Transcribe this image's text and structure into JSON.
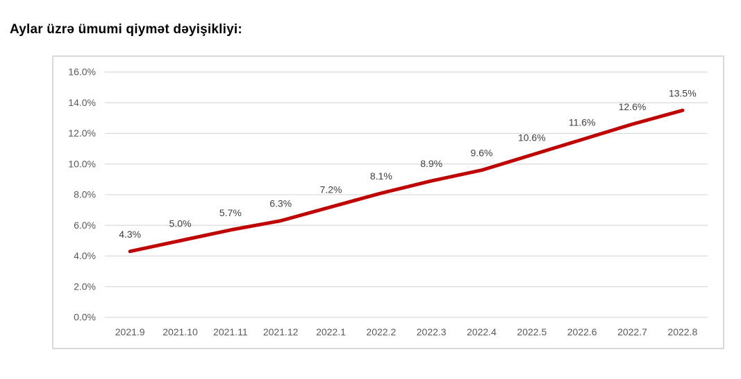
{
  "chart_data": {
    "type": "line",
    "title": "Aylar üzrə ümumi qiymət dəyişikliyi:",
    "categories": [
      "2021.9",
      "2021.10",
      "2021.11",
      "2021.12",
      "2022.1",
      "2022.2",
      "2022.3",
      "2022.4",
      "2022.5",
      "2022.6",
      "2022.7",
      "2022.8"
    ],
    "values": [
      4.3,
      5.0,
      5.7,
      6.3,
      7.2,
      8.1,
      8.9,
      9.6,
      10.6,
      11.6,
      12.6,
      13.5
    ],
    "data_labels": [
      "4.3%",
      "5.0%",
      "5.7%",
      "6.3%",
      "7.2%",
      "8.1%",
      "8.9%",
      "9.6%",
      "10.6%",
      "11.6%",
      "12.6%",
      "13.5%"
    ],
    "y_ticks": [
      {
        "value": 0,
        "label": "0.0%"
      },
      {
        "value": 2,
        "label": "2.0%"
      },
      {
        "value": 4,
        "label": "4.0%"
      },
      {
        "value": 6,
        "label": "6.0%"
      },
      {
        "value": 8,
        "label": "8.0%"
      },
      {
        "value": 10,
        "label": "10.0%"
      },
      {
        "value": 12,
        "label": "12.0%"
      },
      {
        "value": 14,
        "label": "14.0%"
      },
      {
        "value": 16,
        "label": "16.0%"
      }
    ],
    "ylim": [
      0,
      16
    ],
    "xlabel": "",
    "ylabel": "",
    "grid": true,
    "legend": false
  },
  "colors": {
    "line": "#c00000",
    "gridline": "#d9d9d9",
    "frame_border": "#d9d9d9",
    "axis_text": "#595959",
    "data_label_text": "#404040",
    "title_text": "#000000",
    "background": "#ffffff"
  }
}
